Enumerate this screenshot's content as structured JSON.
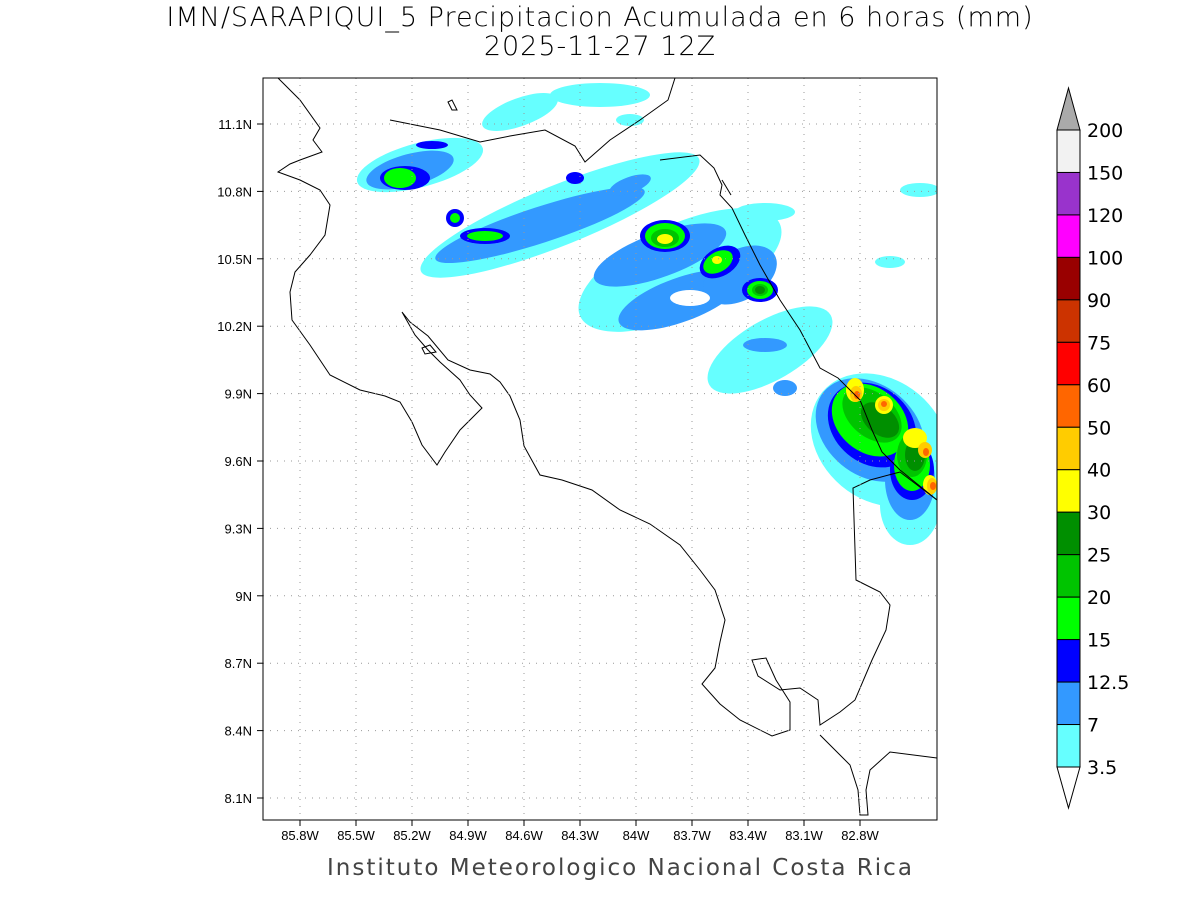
{
  "title": {
    "line1": "IMN/SARAPIQUI_5 Precipitacion Acumulada en 6 horas (mm)",
    "line2": "2025-11-27 12Z"
  },
  "footer": "Instituto Meteorologico Nacional Costa Rica",
  "map": {
    "lon_ticks": [
      "85.8W",
      "85.5W",
      "85.2W",
      "84.9W",
      "84.6W",
      "84.3W",
      "84W",
      "83.7W",
      "83.4W",
      "83.1W",
      "82.8W"
    ],
    "lat_ticks": [
      "11.1N",
      "10.8N",
      "10.5N",
      "10.2N",
      "9.9N",
      "9.6N",
      "9.3N",
      "9N",
      "8.7N",
      "8.4N",
      "8.1N"
    ]
  },
  "colorbar": {
    "labels": [
      "200",
      "150",
      "120",
      "100",
      "90",
      "75",
      "60",
      "50",
      "40",
      "30",
      "25",
      "20",
      "15",
      "12.5",
      "7",
      "3.5"
    ],
    "colors": [
      "#f2f2f2",
      "#9933cc",
      "#ff00ff",
      "#990000",
      "#cc3300",
      "#ff0000",
      "#ff6600",
      "#ffcc00",
      "#ffff00",
      "#008f00",
      "#00c400",
      "#00ff00",
      "#0000ff",
      "#3399ff",
      "#66ffff"
    ],
    "over_color": "#aaaaaa"
  }
}
